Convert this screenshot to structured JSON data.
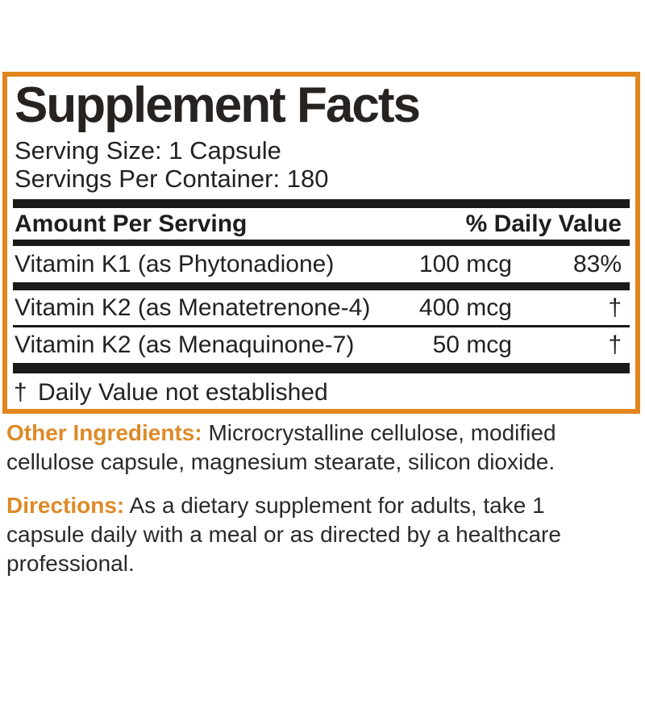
{
  "panel": {
    "title": "Supplement Facts",
    "serving_size": "Serving Size: 1 Capsule",
    "servings_per_container": "Servings Per Container: 180",
    "header": {
      "left": "Amount Per Serving",
      "right": "% Daily Value"
    },
    "rows": [
      {
        "name": "Vitamin K1 (as Phytonadione)",
        "amount": "100 mcg",
        "dv": "83%"
      },
      {
        "name": "Vitamin K2 (as Menatetrenone-4)",
        "amount": "400 mcg",
        "dv": "†"
      },
      {
        "name": "Vitamin K2 (as Menaquinone-7)",
        "amount": "50 mcg",
        "dv": "†"
      }
    ],
    "footnote": {
      "symbol": "†",
      "text": "Daily Value not established"
    }
  },
  "sections": {
    "other_ingredients": {
      "label": "Other Ingredients:",
      "text": "Microcrystalline cellulose, modified cellulose capsule, magnesium stearate, silicon dioxide."
    },
    "directions": {
      "label": "Directions:",
      "text": "As a dietary supplement for adults, take 1 capsule daily with a meal or as directed by a healthcare professional."
    }
  },
  "colors": {
    "accent_orange": "#E1861E",
    "label_orange": "#DE8A28",
    "text_black": "#242220"
  }
}
